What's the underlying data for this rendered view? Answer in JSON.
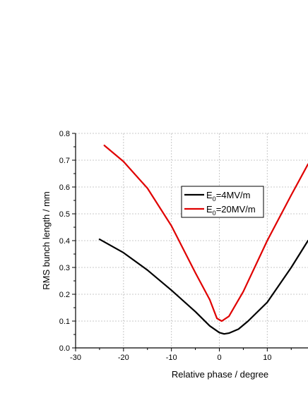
{
  "chart_data": {
    "type": "line",
    "xlabel": "Relative  phase / degree",
    "ylabel": "RMS bunch length / mm",
    "xlim": [
      -30,
      18.5
    ],
    "ylim": [
      0,
      0.8
    ],
    "x_ticks": [
      -30,
      -20,
      -10,
      0,
      10
    ],
    "x_tick_labels": [
      "-30",
      "-20",
      "-10",
      "0",
      "10"
    ],
    "y_ticks": [
      0.0,
      0.1,
      0.2,
      0.3,
      0.4,
      0.5,
      0.6,
      0.7,
      0.8
    ],
    "y_tick_labels": [
      "0.0",
      "0.1",
      "0.2",
      "0.3",
      "0.4",
      "0.5",
      "0.6",
      "0.7",
      "0.8"
    ],
    "grid": true,
    "legend_position": "center-right",
    "series": [
      {
        "name_main": "E",
        "name_sub": "0",
        "name_rest": "=4MV/m",
        "color": "#000000",
        "x": [
          -25,
          -20,
          -15,
          -10,
          -5,
          -2,
          0,
          1,
          2,
          4,
          6,
          10,
          15,
          18.5
        ],
        "y": [
          0.405,
          0.355,
          0.29,
          0.215,
          0.135,
          0.082,
          0.057,
          0.052,
          0.055,
          0.07,
          0.1,
          0.17,
          0.3,
          0.4
        ]
      },
      {
        "name_main": "E",
        "name_sub": "0",
        "name_rest": "=20MV/m",
        "color": "#e00000",
        "x": [
          -24,
          -20,
          -15,
          -10,
          -5,
          -2,
          -0.5,
          0.5,
          2,
          5,
          10,
          15,
          18.5
        ],
        "y": [
          0.755,
          0.695,
          0.595,
          0.455,
          0.28,
          0.18,
          0.11,
          0.1,
          0.118,
          0.21,
          0.4,
          0.57,
          0.685
        ]
      }
    ]
  }
}
